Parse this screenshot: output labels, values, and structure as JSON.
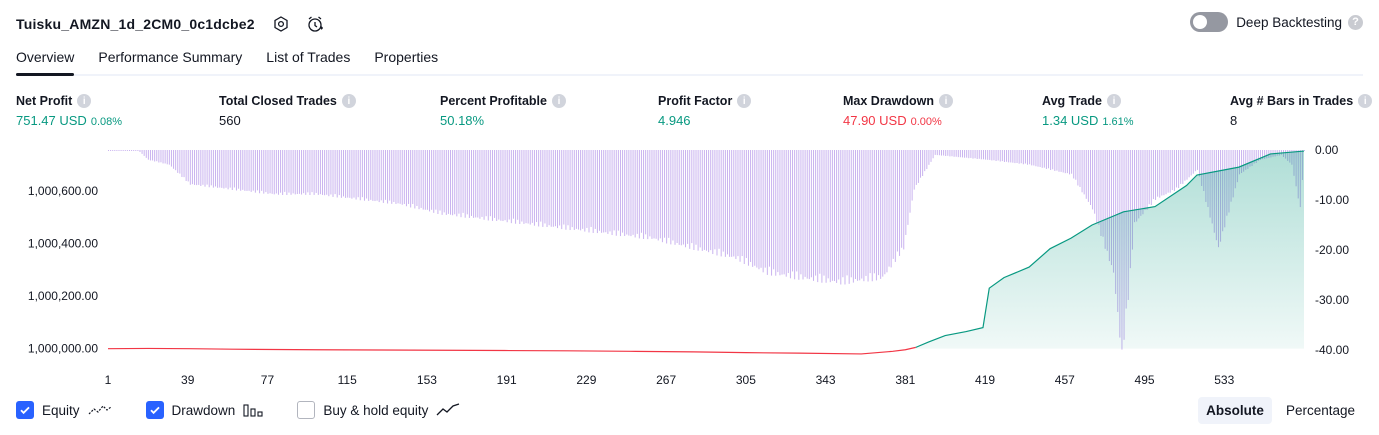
{
  "header": {
    "title": "Tuisku_AMZN_1d_2CM0_0c1dcbe2",
    "deep_backtesting_label": "Deep Backtesting",
    "deep_backtesting_enabled": false
  },
  "tabs": [
    {
      "label": "Overview",
      "active": true
    },
    {
      "label": "Performance Summary",
      "active": false
    },
    {
      "label": "List of Trades",
      "active": false
    },
    {
      "label": "Properties",
      "active": false
    }
  ],
  "metrics": [
    {
      "label": "Net Profit",
      "value": "751.47 USD",
      "pct": "0.08%",
      "tone": "positive"
    },
    {
      "label": "Total Closed Trades",
      "value": "560",
      "pct": "",
      "tone": "neutral"
    },
    {
      "label": "Percent Profitable",
      "value": "50.18%",
      "pct": "",
      "tone": "positive"
    },
    {
      "label": "Profit Factor",
      "value": "4.946",
      "pct": "",
      "tone": "positive"
    },
    {
      "label": "Max Drawdown",
      "value": "47.90 USD",
      "pct": "0.00%",
      "tone": "negative"
    },
    {
      "label": "Avg Trade",
      "value": "1.34 USD",
      "pct": "1.61%",
      "tone": "positive"
    },
    {
      "label": "Avg # Bars in Trades",
      "value": "8",
      "pct": "",
      "tone": "neutral"
    }
  ],
  "chart_data": {
    "type": "area",
    "x_ticks": [
      "1",
      "39",
      "77",
      "115",
      "153",
      "191",
      "229",
      "267",
      "305",
      "343",
      "381",
      "419",
      "457",
      "495",
      "533"
    ],
    "xlim": [
      1,
      571
    ],
    "left_axis": {
      "ticks": [
        "1,000,000.00",
        "1,000,200.00",
        "1,000,400.00",
        "1,000,600.00"
      ],
      "ylim": [
        999995,
        1000755
      ]
    },
    "right_axis": {
      "ticks": [
        "0.00",
        "-10.00",
        "-20.00",
        "-30.00",
        "-40.00"
      ],
      "ylim": [
        0,
        -40
      ]
    },
    "equity": {
      "x": [
        1,
        20,
        40,
        60,
        80,
        100,
        130,
        160,
        190,
        220,
        250,
        280,
        305,
        330,
        360,
        375,
        381,
        386,
        392,
        400,
        410,
        418,
        421,
        428,
        440,
        450,
        460,
        470,
        485,
        500,
        515,
        520,
        540,
        555,
        571
      ],
      "y": [
        1000000,
        1000001,
        1000000,
        999998,
        999997,
        999996,
        999995,
        999994,
        999993,
        999992,
        999990,
        999988,
        999985,
        999983,
        999980,
        999990,
        999996,
        1000005,
        1000025,
        1000050,
        1000065,
        1000080,
        1000230,
        1000270,
        1000310,
        1000380,
        1000420,
        1000470,
        1000520,
        1000540,
        1000620,
        1000660,
        1000690,
        1000740,
        1000751
      ]
    },
    "drawdown": {
      "x": [
        1,
        15,
        20,
        30,
        40,
        60,
        80,
        100,
        120,
        140,
        160,
        180,
        200,
        220,
        240,
        260,
        280,
        300,
        315,
        330,
        350,
        370,
        380,
        385,
        395,
        420,
        440,
        460,
        470,
        480,
        484,
        487,
        490,
        500,
        510,
        520,
        530,
        540,
        550,
        560,
        565,
        569,
        571
      ],
      "y": [
        0,
        0,
        -2,
        -3,
        -7,
        -8,
        -9,
        -9,
        -10,
        -11,
        -13,
        -14,
        -15,
        -16,
        -17,
        -18,
        -20,
        -22,
        -25,
        -26,
        -27,
        -26,
        -20,
        -8,
        -1,
        -2,
        -3,
        -5,
        -12,
        -25,
        -42,
        -30,
        -15,
        -10,
        -8,
        -4,
        -20,
        -5,
        -2,
        -1,
        -3,
        -12,
        0
      ]
    },
    "colors": {
      "equity_line": "#089981",
      "equity_fill": "#089981",
      "below_start_line": "#f23645",
      "drawdown_bar": "#c9b3ef"
    },
    "series_visible": {
      "equity": true,
      "drawdown": true,
      "buy_hold": false
    }
  },
  "legend": {
    "equity": "Equity",
    "drawdown": "Drawdown",
    "buy_hold": "Buy & hold equity"
  },
  "modes": [
    {
      "label": "Absolute",
      "active": true
    },
    {
      "label": "Percentage",
      "active": false
    }
  ]
}
